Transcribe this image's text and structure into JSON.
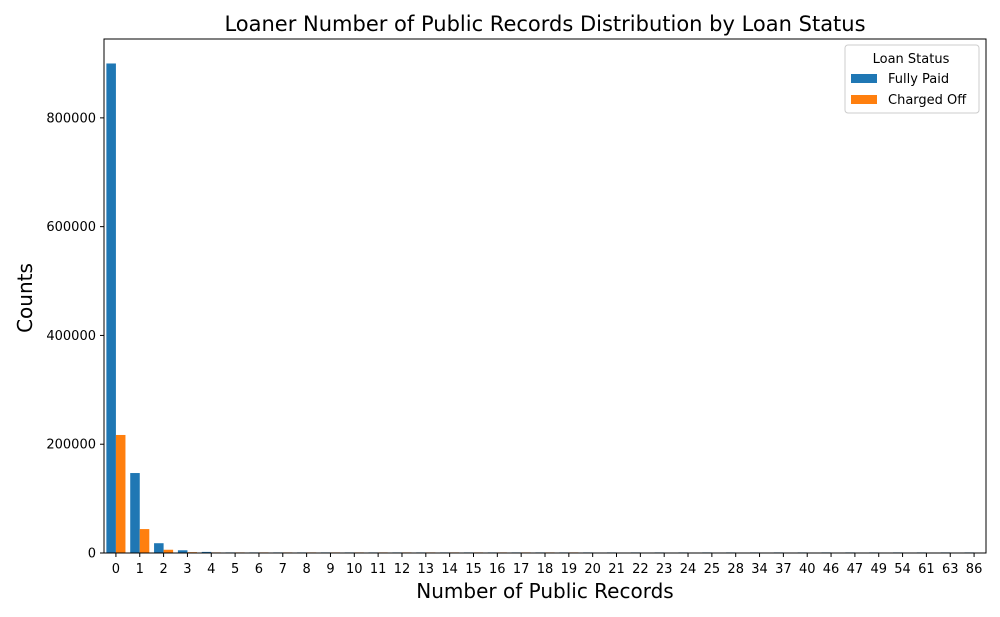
{
  "colors": {
    "fully_paid": "#1f77b4",
    "charged_off": "#ff7f0e"
  },
  "chart_data": {
    "type": "bar",
    "title": "Loaner Number of Public Records Distribution by Loan Status",
    "xlabel": "Number of Public Records",
    "ylabel": "Counts",
    "categories": [
      "0",
      "1",
      "2",
      "3",
      "4",
      "5",
      "6",
      "7",
      "8",
      "9",
      "10",
      "11",
      "12",
      "13",
      "14",
      "15",
      "16",
      "17",
      "18",
      "19",
      "20",
      "21",
      "22",
      "23",
      "24",
      "25",
      "28",
      "34",
      "37",
      "40",
      "46",
      "47",
      "49",
      "54",
      "61",
      "63",
      "86"
    ],
    "series": [
      {
        "name": "Fully Paid",
        "color": "#1f77b4",
        "values": [
          900000,
          147000,
          18000,
          5000,
          2000,
          1000,
          500,
          250,
          120,
          60,
          35,
          18,
          12,
          9,
          6,
          4,
          3,
          2,
          2,
          1,
          1,
          1,
          1,
          1,
          1,
          1,
          1,
          1,
          1,
          1,
          1,
          1,
          1,
          1,
          1,
          1,
          1
        ]
      },
      {
        "name": "Charged Off",
        "color": "#ff7f0e",
        "values": [
          217000,
          44000,
          6000,
          1500,
          600,
          250,
          120,
          60,
          30,
          15,
          9,
          5,
          3,
          2,
          1,
          1,
          1,
          1,
          1,
          1,
          0,
          0,
          0,
          0,
          0,
          0,
          0,
          0,
          0,
          0,
          0,
          0,
          0,
          0,
          0,
          0,
          0
        ]
      }
    ],
    "yticks": [
      0,
      200000,
      400000,
      600000,
      800000
    ],
    "ylim": [
      0,
      945000
    ],
    "legend": {
      "title": "Loan Status",
      "placement": "top-right"
    },
    "grid": false
  }
}
